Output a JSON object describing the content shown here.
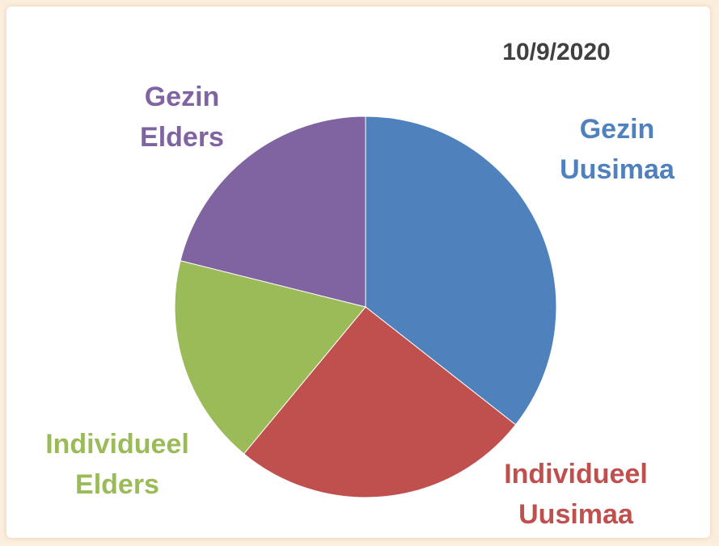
{
  "chart_data": {
    "type": "pie",
    "title": "10/9/2020",
    "categories": [
      "Gezin\nUusimaa",
      "Individueel\nUusimaa",
      "Individueel\nElders",
      "Gezin\nElders"
    ],
    "values": [
      35.6,
      25.4,
      17.9,
      21.1
    ],
    "colors": [
      "#4f81bd",
      "#c0504d",
      "#9bbb59",
      "#8064a2"
    ]
  }
}
